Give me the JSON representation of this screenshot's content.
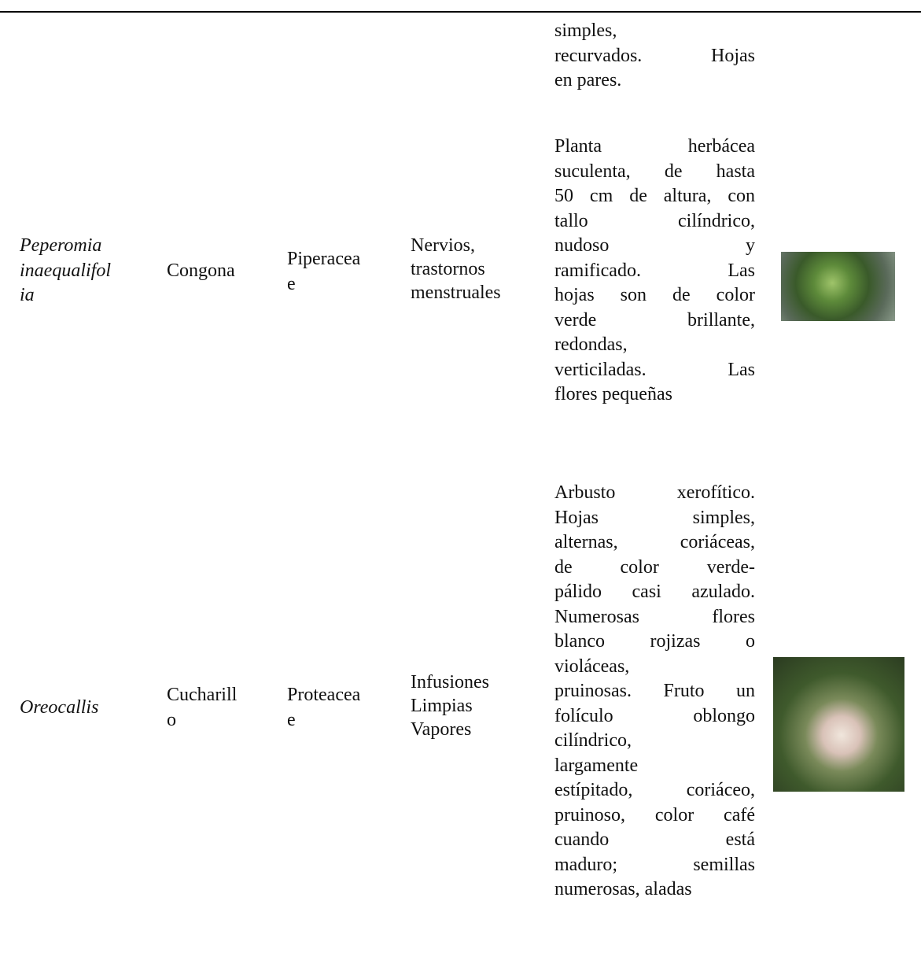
{
  "table": {
    "rows": [
      {
        "description": [
          "simples,",
          "recurvados. Hojas",
          "en pares."
        ]
      },
      {
        "scientific_name": [
          "Peperomia",
          "inaequalifol",
          "ia"
        ],
        "common_name": [
          "Congona"
        ],
        "family": [
          "Piperacea",
          "e"
        ],
        "uses": [
          "Nervios,",
          "trastornos",
          "menstruales"
        ],
        "description": [
          "Planta herbácea",
          "suculenta, de hasta",
          "50 cm de altura, con",
          "tallo cilíndrico,",
          "nudoso y",
          "ramificado. Las",
          "hojas son de color",
          "verde brillante,",
          "redondas,",
          "verticiladas. Las",
          "flores pequeñas"
        ]
      },
      {
        "scientific_name": [
          "Oreocallis"
        ],
        "common_name": [
          "Cucharill",
          "o"
        ],
        "family": [
          "Proteacea",
          "e"
        ],
        "uses": [
          "Infusiones",
          "Limpias",
          "Vapores"
        ],
        "description": [
          "Arbusto xerofítico.",
          "Hojas simples,",
          "alternas, coriáceas,",
          "de color verde-",
          "pálido casi azulado.",
          "Numerosas flores",
          "blanco rojizas o",
          "violáceas,",
          "pruinosas. Fruto un",
          "folículo oblongo",
          "cilíndrico,",
          "largamente",
          "estípitado, coriáceo,",
          "pruinoso, color café",
          "cuando está",
          "maduro; semillas",
          "numerosas, aladas"
        ]
      }
    ]
  }
}
